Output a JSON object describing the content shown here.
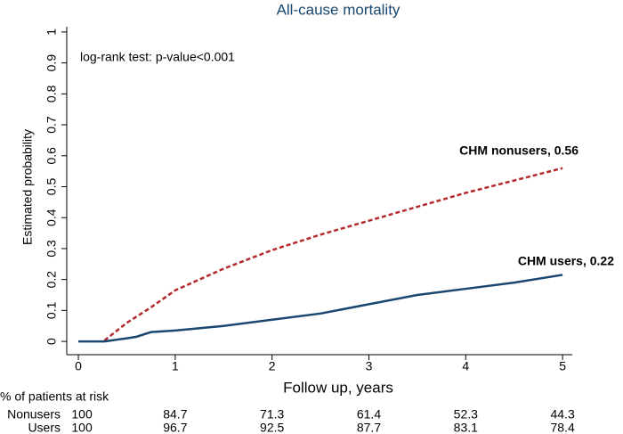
{
  "chart_data": {
    "type": "line",
    "title": "All-cause mortality",
    "xlabel": "Follow up, years",
    "ylabel": "Estimated probability",
    "annotations": [
      "log-rank test: p-value<0.001",
      "CHM nonusers, 0.56",
      "CHM users, 0.22"
    ],
    "x": [
      0,
      0.27,
      0.5,
      0.6,
      0.75,
      1,
      1.5,
      2,
      2.5,
      3,
      3.5,
      4,
      4.5,
      5
    ],
    "series": [
      {
        "name": "CHM nonusers",
        "color": "#b22a2e",
        "dashed": true,
        "values": [
          null,
          0.003,
          0.06,
          0.08,
          0.11,
          0.165,
          0.235,
          0.295,
          0.345,
          0.39,
          0.435,
          0.48,
          0.52,
          0.56
        ]
      },
      {
        "name": "CHM users",
        "color": "#1a476f",
        "dashed": false,
        "values": [
          0,
          0,
          0.01,
          0.015,
          0.03,
          0.035,
          0.05,
          0.07,
          0.09,
          0.12,
          0.15,
          0.17,
          0.19,
          0.215
        ]
      }
    ],
    "xlim": [
      -0.12,
      5.1
    ],
    "xticks": [
      0,
      1,
      2,
      3,
      4,
      5
    ],
    "ylim": [
      -0.043,
      1.017
    ],
    "yticks": [
      0,
      0.1,
      0.2,
      0.3,
      0.4,
      0.5,
      0.6,
      0.7,
      0.8,
      0.9,
      1
    ],
    "grid": false
  },
  "risk_table": {
    "title": "% of patients at risk",
    "rows": [
      {
        "name": "Nonusers",
        "values": [
          100,
          84.7,
          71.3,
          61.4,
          52.3,
          44.3
        ]
      },
      {
        "name": "Users",
        "values": [
          100,
          96.7,
          92.5,
          87.7,
          83.1,
          78.4
        ]
      }
    ]
  }
}
